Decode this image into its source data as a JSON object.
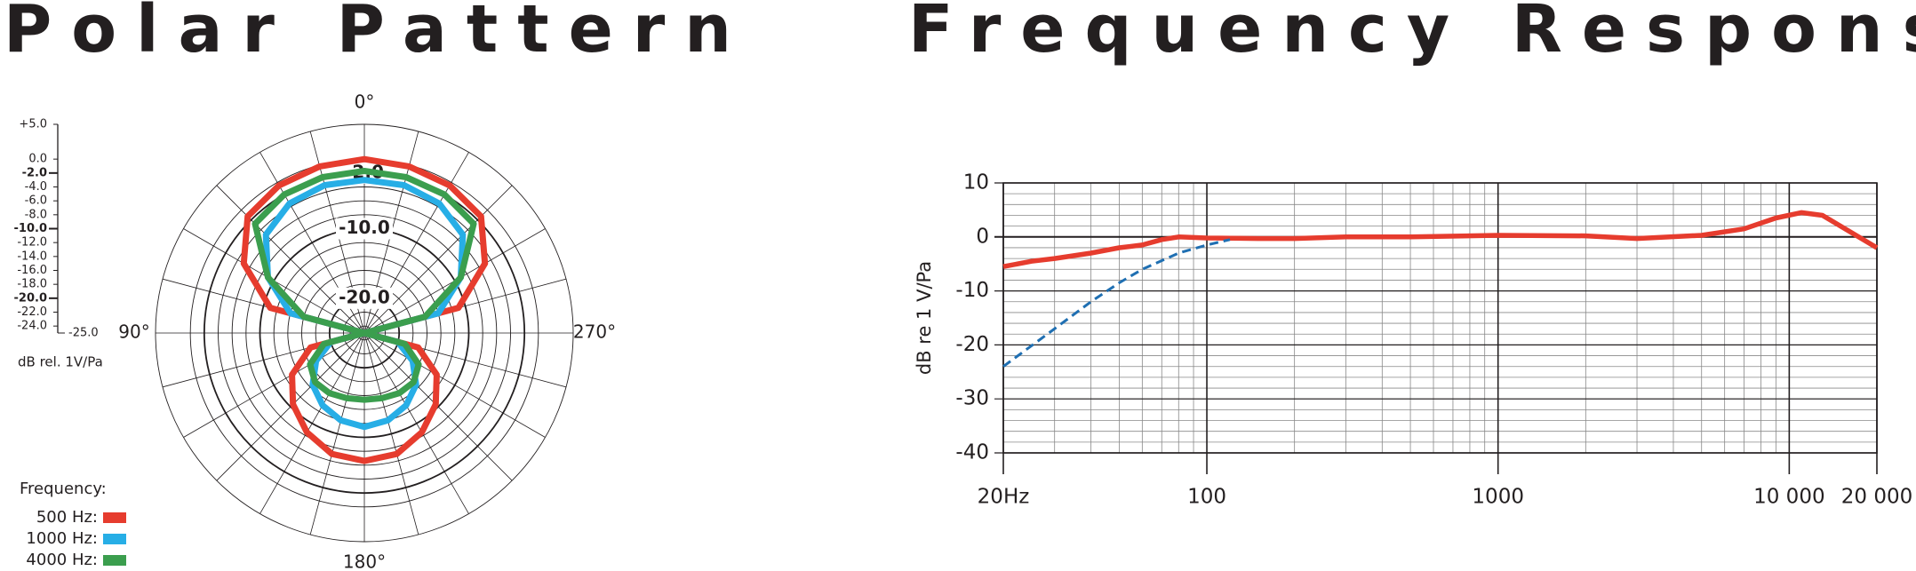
{
  "chart_data": [
    {
      "type": "polar",
      "title": "Polar Pattern",
      "scale_label": "dB rel. 1V/Pa",
      "legend_title": "Frequency:",
      "rlim": [
        -25,
        5
      ],
      "rticks": [
        {
          "value": 5,
          "label": "+5.0"
        },
        {
          "value": 0,
          "label": "0.0"
        },
        {
          "value": -2,
          "label": "-2.0",
          "bold": true
        },
        {
          "value": -4,
          "label": "-4.0"
        },
        {
          "value": -6,
          "label": "-6.0"
        },
        {
          "value": -8,
          "label": "-8.0"
        },
        {
          "value": -10,
          "label": "-10.0",
          "bold": true
        },
        {
          "value": -12,
          "label": "-12.0"
        },
        {
          "value": -14,
          "label": "-14.0"
        },
        {
          "value": -16,
          "label": "-16.0"
        },
        {
          "value": -18,
          "label": "-18.0"
        },
        {
          "value": -20,
          "label": "-20.0",
          "bold": true
        },
        {
          "value": -22,
          "label": "-22.0"
        },
        {
          "value": -24,
          "label": "-24.0"
        },
        {
          "value": -25,
          "label": "-25.0"
        }
      ],
      "ring_labels": [
        {
          "value": -2,
          "label": "-2.0"
        },
        {
          "value": -10,
          "label": "-10.0"
        },
        {
          "value": -20,
          "label": "-20.0"
        }
      ],
      "angle_labels": [
        {
          "value": 0,
          "label": "0°"
        },
        {
          "value": 90,
          "label": "90°"
        },
        {
          "value": 180,
          "label": "180°"
        },
        {
          "value": 270,
          "label": "270°"
        }
      ],
      "x": [
        0,
        15,
        30,
        45,
        60,
        75,
        90,
        105,
        120,
        135,
        150,
        165,
        180,
        195,
        210,
        225,
        240,
        255,
        270,
        285,
        300,
        315,
        330,
        345
      ],
      "series": [
        {
          "name": "500 Hz:",
          "color": "#e63c2e",
          "values": [
            0,
            -0.2,
            -0.5,
            -1.3,
            -5,
            -11,
            -25,
            -17,
            -13,
            -10.5,
            -8.5,
            -7,
            -6.6,
            -7,
            -8.5,
            -10.5,
            -13,
            -17,
            -25,
            -11,
            -5,
            -1.3,
            -0.5,
            -0.2
          ]
        },
        {
          "name": "1000 Hz:",
          "color": "#27aee6",
          "values": [
            -3,
            -3,
            -3.5,
            -5,
            -9,
            -14,
            -25,
            -20,
            -17,
            -14.5,
            -13,
            -12,
            -11.5,
            -12,
            -13,
            -14.5,
            -17,
            -20,
            -25,
            -14,
            -9,
            -5,
            -3.5,
            -3
          ]
        },
        {
          "name": "4000 Hz:",
          "color": "#3b9e4e",
          "values": [
            -1.7,
            -1.8,
            -2,
            -2.8,
            -9,
            -16,
            -25,
            -19,
            -16,
            -15,
            -15,
            -15.3,
            -15.4,
            -15.3,
            -15,
            -15,
            -16,
            -19,
            -25,
            -16,
            -9,
            -2.8,
            -2,
            -1.8
          ]
        }
      ]
    },
    {
      "type": "line",
      "title": "Frequency Response",
      "ylabel": "dB re 1 V/Pa",
      "log_x": true,
      "grid": true,
      "xlim": [
        20,
        20000
      ],
      "xticks": [
        {
          "value": 20,
          "label": "20Hz"
        },
        100,
        1000,
        {
          "value": 10000,
          "label": "10 000"
        },
        {
          "value": 20000,
          "label": "20 000"
        }
      ],
      "ylim": [
        -40,
        10
      ],
      "yticks": [
        10,
        0,
        -10,
        -20,
        -30,
        -40
      ],
      "series": [
        {
          "color": "#e63c2e",
          "x": [
            20,
            25,
            30,
            40,
            50,
            60,
            70,
            80,
            100,
            150,
            200,
            300,
            500,
            1000,
            2000,
            3000,
            5000,
            7000,
            9000,
            11000,
            13000,
            15000,
            20000
          ],
          "values": [
            -5.5,
            -4.5,
            -4,
            -3,
            -2,
            -1.5,
            -0.5,
            0,
            -0.2,
            -0.3,
            -0.3,
            0,
            0,
            0.3,
            0.2,
            -0.3,
            0.3,
            1.5,
            3.5,
            4.5,
            4,
            2,
            -2
          ]
        },
        {
          "color": "#1f6fb2",
          "dashed": true,
          "x": [
            20,
            30,
            40,
            50,
            60,
            80,
            100,
            120
          ],
          "values": [
            -24,
            -17,
            -12,
            -8.5,
            -6,
            -3,
            -1.5,
            -0.5
          ]
        }
      ]
    }
  ]
}
